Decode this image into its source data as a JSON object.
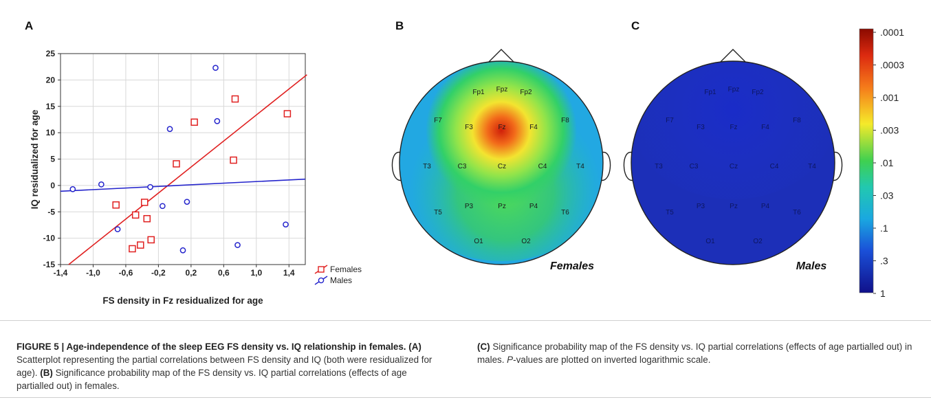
{
  "figure": {
    "panels": {
      "a": "A",
      "b": "B",
      "c": "C"
    },
    "scatter": {
      "xlabel": "FS density in Fz residualized for age",
      "ylabel": "IQ residualized for age"
    },
    "maps": {
      "females_label": "Females",
      "males_label": "Males",
      "electrodes": [
        "Fp1",
        "Fpz",
        "Fp2",
        "F7",
        "F3",
        "Fz",
        "F4",
        "F8",
        "T3",
        "C3",
        "Cz",
        "C4",
        "T4",
        "T5",
        "P3",
        "Pz",
        "P4",
        "T6",
        "O1",
        "O2"
      ],
      "colorbar_ticks": [
        ".0001",
        ".0003",
        ".001",
        ".003",
        ".01",
        ".03",
        ".1",
        ".3",
        "1"
      ]
    }
  },
  "caption": {
    "title": "FIGURE 5 | Age-independence of the sleep EEG FS density vs. IQ relationship in females.",
    "part_a_label": "(A)",
    "part_a": " Scatterplot representing the partial correlations between FS density and IQ (both were residualized for age). ",
    "part_b_label": "(B)",
    "part_b": " Significance probability map of the FS density vs. IQ partial correlations (effects of age partialled out) in females. ",
    "part_c_label": "(C)",
    "part_c": " Significance probability map of the FS density vs. IQ partial correlations (effects of age partialled out) in males. ",
    "p_italic": "P",
    "part_end": "-values are plotted on inverted logarithmic scale."
  },
  "chart_data": {
    "type": "scatter",
    "xlabel": "FS density in Fz residualized for age",
    "ylabel": "IQ residualized for age",
    "xlim": [
      -1.4,
      1.6
    ],
    "ylim": [
      -15,
      25
    ],
    "xticks": [
      "-1,4",
      "-1,0",
      "-0,6",
      "-0,2",
      "0,2",
      "0,6",
      "1,0",
      "1,4"
    ],
    "xtick_values": [
      -1.4,
      -1.0,
      -0.6,
      -0.2,
      0.2,
      0.6,
      1.0,
      1.4
    ],
    "yticks": [
      "25",
      "20",
      "15",
      "10",
      "5",
      "0",
      "-5",
      "-10",
      "-15"
    ],
    "ytick_values": [
      25,
      20,
      15,
      10,
      5,
      0,
      -5,
      -10,
      -15
    ],
    "grid": true,
    "legend_position": "bottom-right",
    "series": [
      {
        "name": "Females",
        "color": "#e02020",
        "marker": "square",
        "points": [
          [
            -0.72,
            -3.7
          ],
          [
            -0.48,
            -5.6
          ],
          [
            -0.37,
            -3.2
          ],
          [
            -0.34,
            -6.3
          ],
          [
            -0.29,
            -10.3
          ],
          [
            -0.42,
            -11.3
          ],
          [
            -0.52,
            -12.0
          ],
          [
            0.02,
            4.1
          ],
          [
            0.24,
            12.0
          ],
          [
            0.72,
            4.8
          ],
          [
            0.74,
            16.4
          ],
          [
            1.38,
            13.6
          ]
        ],
        "fit": [
          [
            -1.3,
            -15
          ],
          [
            1.62,
            21
          ]
        ]
      },
      {
        "name": "Males",
        "color": "#2424cc",
        "marker": "circle",
        "points": [
          [
            -1.25,
            -0.7
          ],
          [
            -0.9,
            0.2
          ],
          [
            -0.7,
            -8.3
          ],
          [
            -0.3,
            -0.3
          ],
          [
            -0.15,
            -3.9
          ],
          [
            -0.06,
            10.7
          ],
          [
            0.1,
            -12.3
          ],
          [
            0.15,
            -3.1
          ],
          [
            0.5,
            22.3
          ],
          [
            0.52,
            12.2
          ],
          [
            0.77,
            -11.3
          ],
          [
            1.36,
            -7.4
          ]
        ],
        "fit": [
          [
            -1.4,
            -1.1
          ],
          [
            1.6,
            1.2
          ]
        ]
      }
    ]
  }
}
